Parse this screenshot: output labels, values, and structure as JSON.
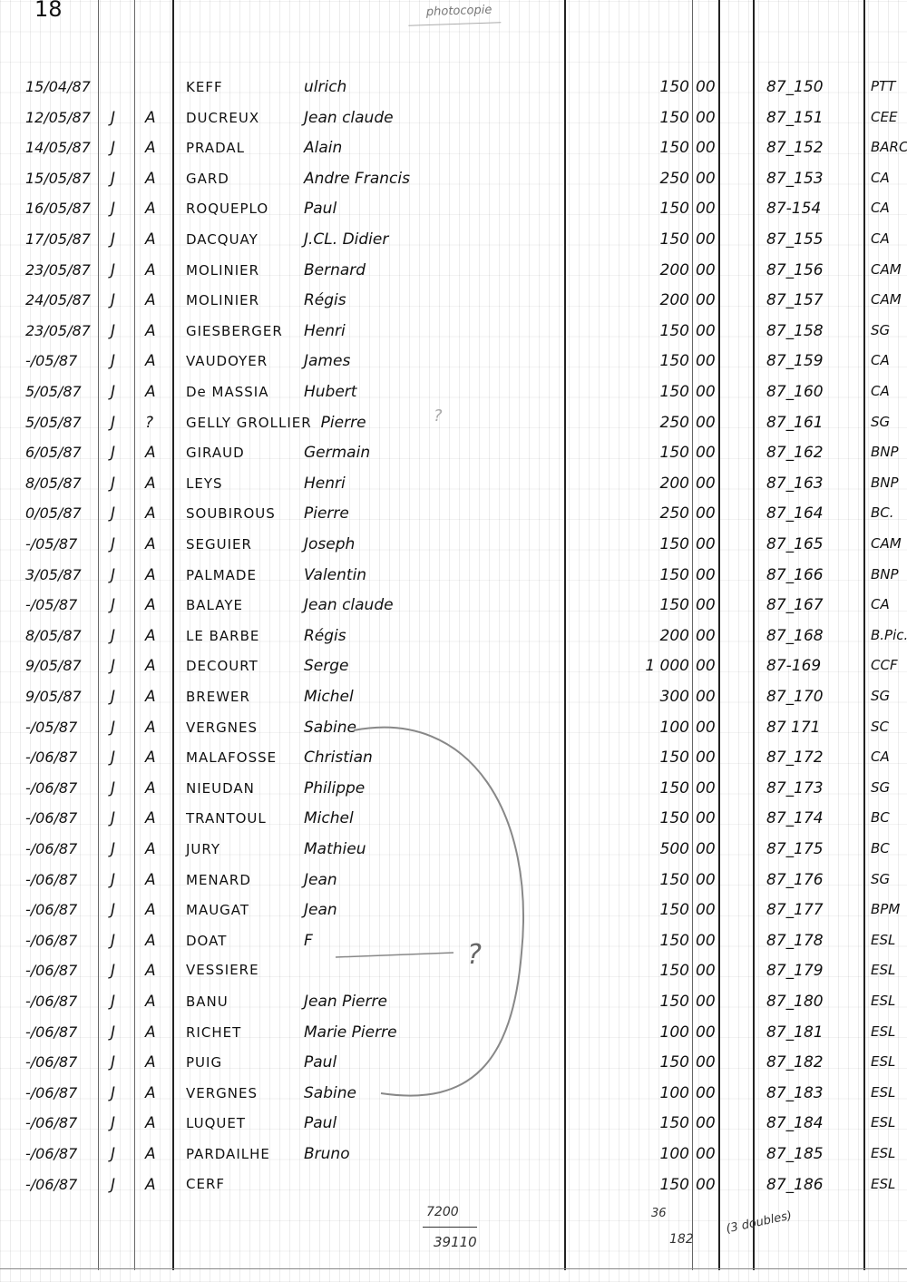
{
  "page_number": "18",
  "header_note": "photocopie",
  "rows": [
    {
      "date": "15/04/87",
      "j": "",
      "a": "",
      "surname": "KEFF",
      "first_name": "ulrich",
      "amount": "150",
      "cents": "00",
      "ref": "87_150",
      "bank": "PTT"
    },
    {
      "date": "12/05/87",
      "j": "J",
      "a": "A",
      "surname": "DUCREUX",
      "first_name": "Jean claude",
      "amount": "150",
      "cents": "00",
      "ref": "87_151",
      "bank": "CEE"
    },
    {
      "date": "14/05/87",
      "j": "J",
      "a": "A",
      "surname": "PRADAL",
      "first_name": "Alain",
      "amount": "150",
      "cents": "00",
      "ref": "87_152",
      "bank": "BARC"
    },
    {
      "date": "15/05/87",
      "j": "J",
      "a": "A",
      "surname": "GARD",
      "first_name": "Andre Francis",
      "amount": "250",
      "cents": "00",
      "ref": "87_153",
      "bank": "CA"
    },
    {
      "date": "16/05/87",
      "j": "J",
      "a": "A",
      "surname": "ROQUEPLO",
      "first_name": "Paul",
      "amount": "150",
      "cents": "00",
      "ref": "87-154",
      "bank": "CA"
    },
    {
      "date": "17/05/87",
      "j": "J",
      "a": "A",
      "surname": "DACQUAY",
      "first_name": "J.CL. Didier",
      "amount": "150",
      "cents": "00",
      "ref": "87_155",
      "bank": "CA"
    },
    {
      "date": "23/05/87",
      "j": "J",
      "a": "A",
      "surname": "MOLINIER",
      "first_name": "Bernard",
      "amount": "200",
      "cents": "00",
      "ref": "87_156",
      "bank": "CAM"
    },
    {
      "date": "24/05/87",
      "j": "J",
      "a": "A",
      "surname": "MOLINIER",
      "first_name": "Régis",
      "amount": "200",
      "cents": "00",
      "ref": "87_157",
      "bank": "CAM"
    },
    {
      "date": "23/05/87",
      "j": "J",
      "a": "A",
      "surname": "GIESBERGER",
      "first_name": "Henri",
      "amount": "150",
      "cents": "00",
      "ref": "87_158",
      "bank": "SG"
    },
    {
      "date": "-/05/87",
      "j": "J",
      "a": "A",
      "surname": "VAUDOYER",
      "first_name": "James",
      "amount": "150",
      "cents": "00",
      "ref": "87_159",
      "bank": "CA"
    },
    {
      "date": "5/05/87",
      "j": "J",
      "a": "A",
      "surname": "De MASSIA",
      "first_name": "Hubert",
      "amount": "150",
      "cents": "00",
      "ref": "87_160",
      "bank": "CA"
    },
    {
      "date": "5/05/87",
      "j": "J",
      "a": "?",
      "surname": "GELLY GROLLIER",
      "first_name": "Pierre",
      "amount": "250",
      "cents": "00",
      "ref": "87_161",
      "bank": "SG"
    },
    {
      "date": "6/05/87",
      "j": "J",
      "a": "A",
      "surname": "GIRAUD",
      "first_name": "Germain",
      "amount": "150",
      "cents": "00",
      "ref": "87_162",
      "bank": "BNP"
    },
    {
      "date": "8/05/87",
      "j": "J",
      "a": "A",
      "surname": "LEYS",
      "first_name": "Henri",
      "amount": "200",
      "cents": "00",
      "ref": "87_163",
      "bank": "BNP"
    },
    {
      "date": "0/05/87",
      "j": "J",
      "a": "A",
      "surname": "SOUBIROUS",
      "first_name": "Pierre",
      "amount": "250",
      "cents": "00",
      "ref": "87_164",
      "bank": "BC."
    },
    {
      "date": "-/05/87",
      "j": "J",
      "a": "A",
      "surname": "SEGUIER",
      "first_name": "Joseph",
      "amount": "150",
      "cents": "00",
      "ref": "87_165",
      "bank": "CAM"
    },
    {
      "date": "3/05/87",
      "j": "J",
      "a": "A",
      "surname": "PALMADE",
      "first_name": "Valentin",
      "amount": "150",
      "cents": "00",
      "ref": "87_166",
      "bank": "BNP"
    },
    {
      "date": "-/05/87",
      "j": "J",
      "a": "A",
      "surname": "BALAYE",
      "first_name": "Jean claude",
      "amount": "150",
      "cents": "00",
      "ref": "87_167",
      "bank": "CA"
    },
    {
      "date": "8/05/87",
      "j": "J",
      "a": "A",
      "surname": "LE BARBE",
      "first_name": "Régis",
      "amount": "200",
      "cents": "00",
      "ref": "87_168",
      "bank": "B.Pic."
    },
    {
      "date": "9/05/87",
      "j": "J",
      "a": "A",
      "surname": "DECOURT",
      "first_name": "Serge",
      "amount": "1 000",
      "cents": "00",
      "ref": "87-169",
      "bank": "CCF"
    },
    {
      "date": "9/05/87",
      "j": "J",
      "a": "A",
      "surname": "BREWER",
      "first_name": "Michel",
      "amount": "300",
      "cents": "00",
      "ref": "87_170",
      "bank": "SG"
    },
    {
      "date": "-/05/87",
      "j": "J",
      "a": "A",
      "surname": "VERGNES",
      "first_name": "Sabine",
      "amount": "100",
      "cents": "00",
      "ref": "87 171",
      "bank": "SC"
    },
    {
      "date": "-/06/87",
      "j": "J",
      "a": "A",
      "surname": "MALAFOSSE",
      "first_name": "Christian",
      "amount": "150",
      "cents": "00",
      "ref": "87_172",
      "bank": "CA"
    },
    {
      "date": "-/06/87",
      "j": "J",
      "a": "A",
      "surname": "NIEUDAN",
      "first_name": "Philippe",
      "amount": "150",
      "cents": "00",
      "ref": "87_173",
      "bank": "SG"
    },
    {
      "date": "-/06/87",
      "j": "J",
      "a": "A",
      "surname": "TRANTOUL",
      "first_name": "Michel",
      "amount": "150",
      "cents": "00",
      "ref": "87_174",
      "bank": "BC"
    },
    {
      "date": "-/06/87",
      "j": "J",
      "a": "A",
      "surname": "JURY",
      "first_name": "Mathieu",
      "amount": "500",
      "cents": "00",
      "ref": "87_175",
      "bank": "BC"
    },
    {
      "date": "-/06/87",
      "j": "J",
      "a": "A",
      "surname": "MENARD",
      "first_name": "Jean",
      "amount": "150",
      "cents": "00",
      "ref": "87_176",
      "bank": "SG"
    },
    {
      "date": "-/06/87",
      "j": "J",
      "a": "A",
      "surname": "MAUGAT",
      "first_name": "Jean",
      "amount": "150",
      "cents": "00",
      "ref": "87_177",
      "bank": "BPM"
    },
    {
      "date": "-/06/87",
      "j": "J",
      "a": "A",
      "surname": "DOAT",
      "first_name": "F",
      "amount": "150",
      "cents": "00",
      "ref": "87_178",
      "bank": "ESL"
    },
    {
      "date": "-/06/87",
      "j": "J",
      "a": "A",
      "surname": "VESSIERE",
      "first_name": "",
      "amount": "150",
      "cents": "00",
      "ref": "87_179",
      "bank": "ESL"
    },
    {
      "date": "-/06/87",
      "j": "J",
      "a": "A",
      "surname": "BANU",
      "first_name": "Jean Pierre",
      "amount": "150",
      "cents": "00",
      "ref": "87_180",
      "bank": "ESL"
    },
    {
      "date": "-/06/87",
      "j": "J",
      "a": "A",
      "surname": "RICHET",
      "first_name": "Marie Pierre",
      "amount": "100",
      "cents": "00",
      "ref": "87_181",
      "bank": "ESL"
    },
    {
      "date": "-/06/87",
      "j": "J",
      "a": "A",
      "surname": "PUIG",
      "first_name": "Paul",
      "amount": "150",
      "cents": "00",
      "ref": "87_182",
      "bank": "ESL"
    },
    {
      "date": "-/06/87",
      "j": "J",
      "a": "A",
      "surname": "VERGNES",
      "first_name": "Sabine",
      "amount": "100",
      "cents": "00",
      "ref": "87_183",
      "bank": "ESL"
    },
    {
      "date": "-/06/87",
      "j": "J",
      "a": "A",
      "surname": "LUQUET",
      "first_name": "Paul",
      "amount": "150",
      "cents": "00",
      "ref": "87_184",
      "bank": "ESL"
    },
    {
      "date": "-/06/87",
      "j": "J",
      "a": "A",
      "surname": "PARDAILHE",
      "first_name": "Bruno",
      "amount": "100",
      "cents": "00",
      "ref": "87_185",
      "bank": "ESL"
    },
    {
      "date": "-/06/87",
      "j": "J",
      "a": "A",
      "surname": "CERF",
      "first_name": "",
      "amount": "150",
      "cents": "00",
      "ref": "87_186",
      "bank": "ESL"
    }
  ],
  "annotations": {
    "question_mark_1": "?",
    "question_mark_2": "?",
    "total_top": "7200",
    "total_bottom": "39110",
    "count_top": "36",
    "count_bottom": "182",
    "doubles": "(3 doubles)"
  }
}
